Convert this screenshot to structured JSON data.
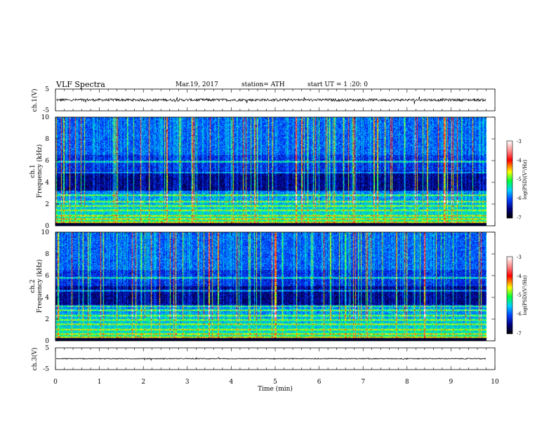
{
  "header": {
    "title": "VLF  Spectra",
    "date": "Mar.19, 2017",
    "station": "station= ATH",
    "start_ut": "start  UT  =   1  :20: 0"
  },
  "colors": {
    "background": "#ffffff",
    "axis": "#000000",
    "colormap": [
      "#000000",
      "#000080",
      "#0000ff",
      "#00c8ff",
      "#00ff80",
      "#ffff00",
      "#ff0000",
      "#ffffff"
    ]
  },
  "chart_data": [
    {
      "type": "line",
      "name": "ch1-waveform",
      "ylabel": "ch.1(V)",
      "xlim": [
        0,
        10
      ],
      "ylim": [
        -5,
        5
      ],
      "yticks": [
        "5",
        "-5"
      ],
      "signal_mean": 0,
      "signal_amplitude_approx": 0.6,
      "data_end_min": 9.8
    },
    {
      "type": "heatmap",
      "name": "ch1-spectrogram",
      "ylabel": "ch.1\nFrequency (kHz)",
      "ylabel_lines": [
        "ch.1",
        "Frequency (kHz)"
      ],
      "xlim": [
        0,
        10
      ],
      "ylim": [
        0,
        10
      ],
      "yticks": [
        "0",
        "2",
        "4",
        "6",
        "8",
        "10"
      ],
      "colorbar": {
        "label": "log(PSD)(V²/Hz)",
        "range": [
          -7,
          -3
        ],
        "ticks": [
          "-3",
          "-4",
          "-5",
          "-6",
          "-7"
        ]
      },
      "bands_khz": [
        0.3,
        0.6,
        0.9,
        1.4,
        1.8,
        2.2,
        2.8,
        4.9,
        5.9
      ]
    },
    {
      "type": "heatmap",
      "name": "ch2-spectrogram",
      "ylabel": "ch.2\nFrequency (kHz)",
      "ylabel_lines": [
        "ch.2",
        "Frequency (kHz)"
      ],
      "xlim": [
        0,
        10
      ],
      "ylim": [
        0,
        10
      ],
      "yticks": [
        "0",
        "2",
        "4",
        "6",
        "8",
        "10"
      ],
      "colorbar": {
        "label": "log(PSD)(V²/Hz)",
        "range": [
          -7,
          -3
        ],
        "ticks": [
          "-3",
          "-4",
          "-5",
          "-6",
          "-7"
        ]
      },
      "bands_khz": [
        0.3,
        0.6,
        1.0,
        1.5,
        1.9,
        2.3,
        2.8,
        3.2,
        4.6,
        5.8
      ]
    },
    {
      "type": "line",
      "name": "ch3-waveform",
      "ylabel": "ch.3(V)",
      "xlim": [
        0,
        10
      ],
      "ylim": [
        -5,
        5
      ],
      "yticks": [
        "5",
        "-5"
      ],
      "signal_mean": 0,
      "signal_amplitude_approx": 0.2,
      "data_end_min": 9.8
    }
  ],
  "xaxis": {
    "label": "Time  (min)",
    "ticks": [
      "0",
      "1",
      "2",
      "3",
      "4",
      "5",
      "6",
      "7",
      "8",
      "9",
      "10"
    ]
  }
}
